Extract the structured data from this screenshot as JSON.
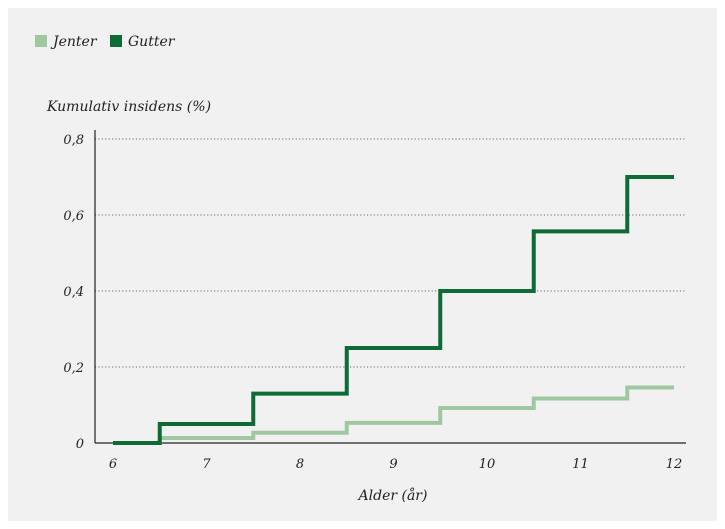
{
  "chart_data": {
    "type": "line",
    "step": true,
    "ylabel": "Kumulativ insidens (%)",
    "xlabel": "Alder (år)",
    "legend_position": "top-left",
    "grid": "horizontal-dotted",
    "xlim": [
      6,
      12
    ],
    "ylim": [
      0,
      0.8
    ],
    "x_ticks": [
      6,
      7,
      8,
      9,
      10,
      11,
      12
    ],
    "y_ticks": [
      0,
      0.2,
      0.4,
      0.6,
      0.8
    ],
    "y_tick_labels": [
      "0",
      "0,2",
      "0,4",
      "0,6",
      "0,8"
    ],
    "series": [
      {
        "name": "Jenter",
        "color": "#9fc8a0",
        "x": [
          6,
          6.5,
          7.5,
          8.5,
          9.5,
          10.5,
          11.5,
          12
        ],
        "values": [
          0,
          0.013,
          0.027,
          0.053,
          0.092,
          0.117,
          0.146,
          0.146
        ]
      },
      {
        "name": "Gutter",
        "color": "#0f6b35",
        "x": [
          6,
          6.5,
          7.5,
          8.5,
          9.5,
          10.5,
          11.5,
          12
        ],
        "values": [
          0,
          0.05,
          0.13,
          0.25,
          0.4,
          0.557,
          0.7,
          0.7
        ]
      }
    ]
  }
}
